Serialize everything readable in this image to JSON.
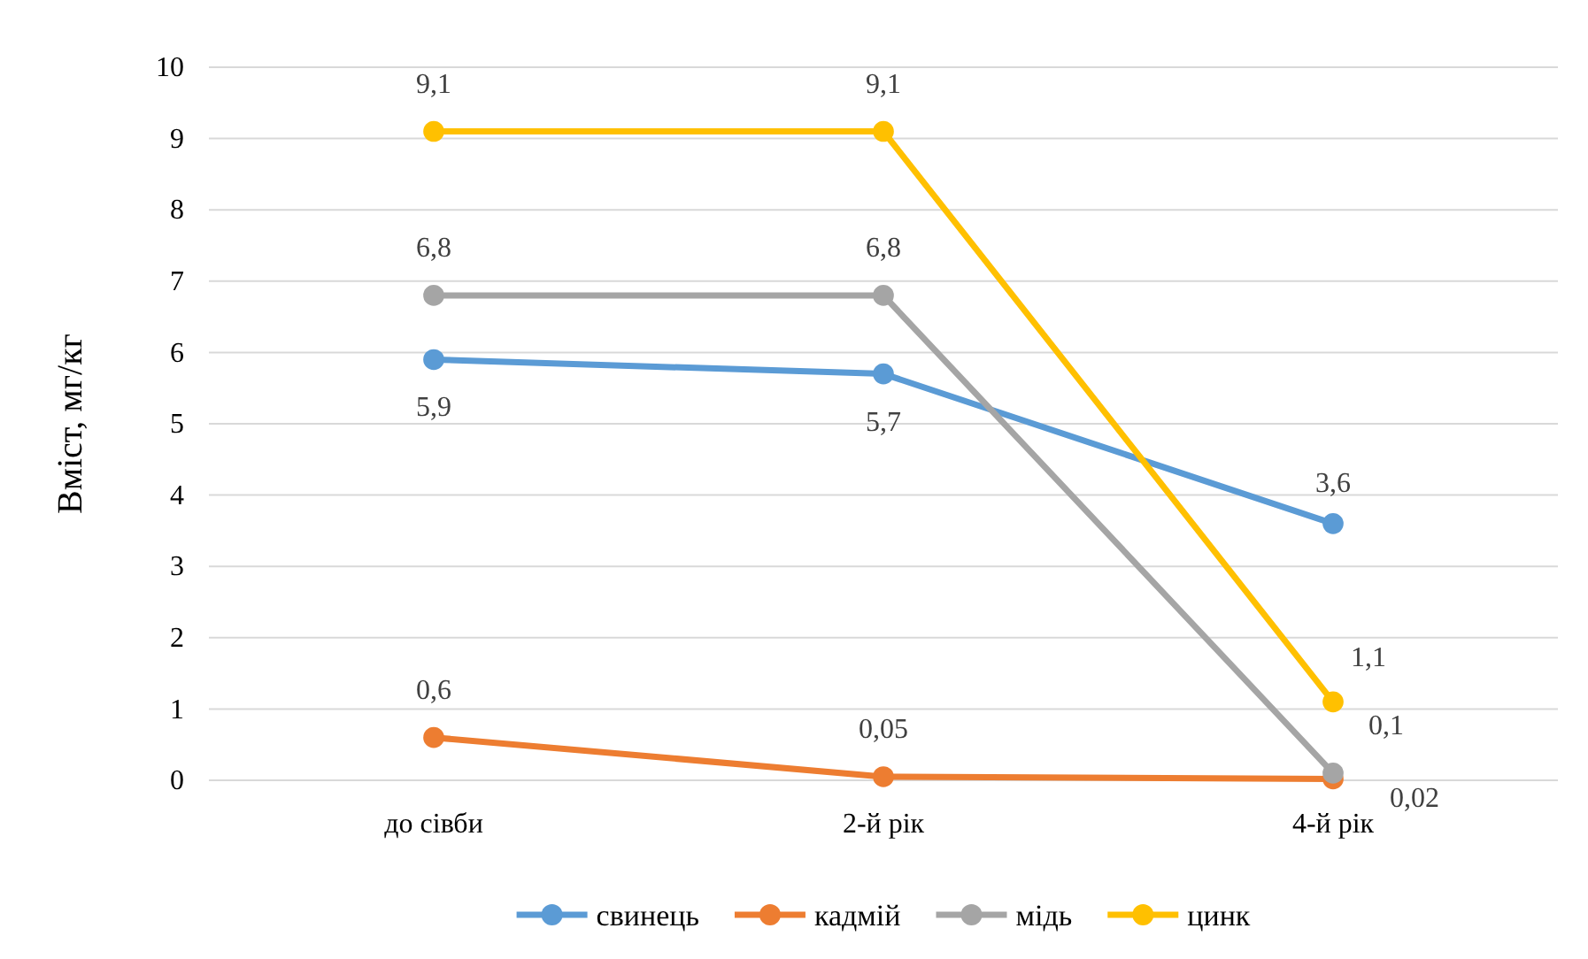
{
  "chart_data": {
    "type": "line",
    "ylabel": "Вміст, мг/кг",
    "categories": [
      "до сівби",
      "2-й рік",
      "4-й рік"
    ],
    "ylim": [
      0,
      10
    ],
    "yticks": [
      0,
      1,
      2,
      3,
      4,
      5,
      6,
      7,
      8,
      9,
      10
    ],
    "grid": "y",
    "legend": "bottom",
    "marker": "circle",
    "line_style": "solid",
    "series": [
      {
        "name": "свинець",
        "color": "#5b9bd5",
        "values": [
          5.9,
          5.7,
          3.6
        ],
        "value_labels": [
          "5,9",
          "5,7",
          "3,6"
        ]
      },
      {
        "name": "кадмій",
        "color": "#ed7d31",
        "values": [
          0.6,
          0.05,
          0.02
        ],
        "value_labels": [
          "0,6",
          "0,05",
          "0,02"
        ]
      },
      {
        "name": "мідь",
        "color": "#a5a5a5",
        "values": [
          6.8,
          6.8,
          0.1
        ],
        "value_labels": [
          "6,8",
          "6,8",
          "0,1"
        ]
      },
      {
        "name": "цинк",
        "color": "#ffc000",
        "values": [
          9.1,
          9.1,
          1.1
        ],
        "value_labels": [
          "9,1",
          "9,1",
          "1,1"
        ]
      }
    ]
  }
}
